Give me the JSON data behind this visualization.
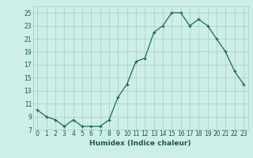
{
  "x": [
    0,
    1,
    2,
    3,
    4,
    5,
    6,
    7,
    8,
    9,
    10,
    11,
    12,
    13,
    14,
    15,
    16,
    17,
    18,
    19,
    20,
    21,
    22,
    23
  ],
  "y": [
    10,
    9,
    8.5,
    7.5,
    8.5,
    7.5,
    7.5,
    7.5,
    8.5,
    12,
    14,
    17.5,
    18,
    22,
    23,
    25,
    25,
    23,
    24,
    23,
    21,
    19,
    16,
    14
  ],
  "xlabel": "Humidex (Indice chaleur)",
  "xlim": [
    -0.5,
    23.5
  ],
  "ylim": [
    7,
    26
  ],
  "yticks": [
    7,
    9,
    11,
    13,
    15,
    17,
    19,
    21,
    23,
    25
  ],
  "ytick_labels": [
    "7",
    "9",
    "11",
    "13",
    "15",
    "17",
    "19",
    "21",
    "23",
    "25"
  ],
  "xtick_labels": [
    "0",
    "1",
    "2",
    "3",
    "4",
    "5",
    "6",
    "7",
    "8",
    "9",
    "10",
    "11",
    "12",
    "13",
    "14",
    "15",
    "16",
    "17",
    "18",
    "19",
    "20",
    "21",
    "22",
    "23"
  ],
  "line_color": "#1a6b5a",
  "marker": "+",
  "bg_color": "#ceeee8",
  "grid_color": "#aaccc6",
  "label_color": "#1a5a4a",
  "tick_fontsize": 5.5,
  "xlabel_fontsize": 6.5
}
